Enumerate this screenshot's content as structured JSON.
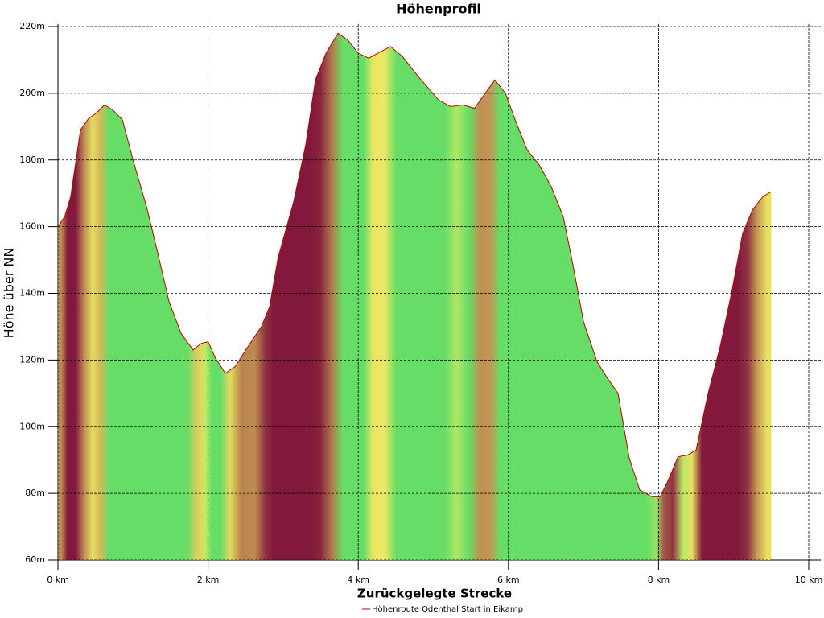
{
  "chart_data": {
    "type": "area",
    "title": "Höhenprofil",
    "x_label": "Zurückgelegte Strecke",
    "y_label": "Höhe über NN",
    "xlim": [
      0,
      10
    ],
    "ylim": [
      60,
      220
    ],
    "xticks": [
      {
        "value": 0,
        "label": "0 km"
      },
      {
        "value": 2,
        "label": "2 km"
      },
      {
        "value": 4,
        "label": "4 km"
      },
      {
        "value": 6,
        "label": "6 km"
      },
      {
        "value": 8,
        "label": "8 km"
      },
      {
        "value": 10,
        "label": "10 km"
      }
    ],
    "yticks": [
      {
        "value": 60,
        "label": "60m"
      },
      {
        "value": 80,
        "label": "80m"
      },
      {
        "value": 100,
        "label": "100m"
      },
      {
        "value": 120,
        "label": "120m"
      },
      {
        "value": 140,
        "label": "140m"
      },
      {
        "value": 160,
        "label": "160m"
      },
      {
        "value": 180,
        "label": "180m"
      },
      {
        "value": 200,
        "label": "200m"
      },
      {
        "value": 220,
        "label": "220m"
      }
    ],
    "grid": true,
    "legend": "bottom",
    "x": [
      0,
      0.09,
      0.17,
      0.3,
      0.41,
      0.51,
      0.62,
      0.73,
      0.86,
      1.0,
      1.18,
      1.32,
      1.48,
      1.64,
      1.8,
      1.91,
      2.0,
      2.1,
      2.23,
      2.36,
      2.53,
      2.71,
      2.82,
      2.93,
      3.14,
      3.3,
      3.43,
      3.57,
      3.73,
      3.86,
      4.0,
      4.14,
      4.26,
      4.43,
      4.59,
      4.8,
      5.07,
      5.23,
      5.39,
      5.55,
      5.69,
      5.82,
      5.96,
      6.09,
      6.25,
      6.41,
      6.57,
      6.73,
      6.86,
      7.0,
      7.18,
      7.32,
      7.46,
      7.61,
      7.75,
      7.91,
      8.02,
      8.12,
      8.26,
      8.39,
      8.5,
      8.66,
      8.82,
      8.98,
      9.12,
      9.25,
      9.39,
      9.5
    ],
    "series": [
      {
        "name": "Höhenroute Odenthal Start in Eikamp",
        "color": "#c00000",
        "values": [
          160,
          163,
          169,
          189,
          192.5,
          194,
          196.5,
          195,
          192,
          180,
          166,
          153,
          137.5,
          128,
          123,
          125,
          125.5,
          120.5,
          116,
          118,
          124,
          130,
          136,
          150.5,
          167.5,
          184.5,
          204,
          212,
          218,
          216,
          212,
          210.5,
          212,
          214,
          211,
          205,
          198,
          196,
          196.5,
          195.5,
          200,
          204,
          200,
          192,
          183,
          178.5,
          172,
          163,
          148.5,
          131.5,
          119.5,
          114.5,
          110,
          90.5,
          81,
          79,
          79,
          83.5,
          91,
          91.5,
          93,
          110,
          124,
          141,
          158,
          165,
          169,
          170.5
        ]
      }
    ]
  }
}
